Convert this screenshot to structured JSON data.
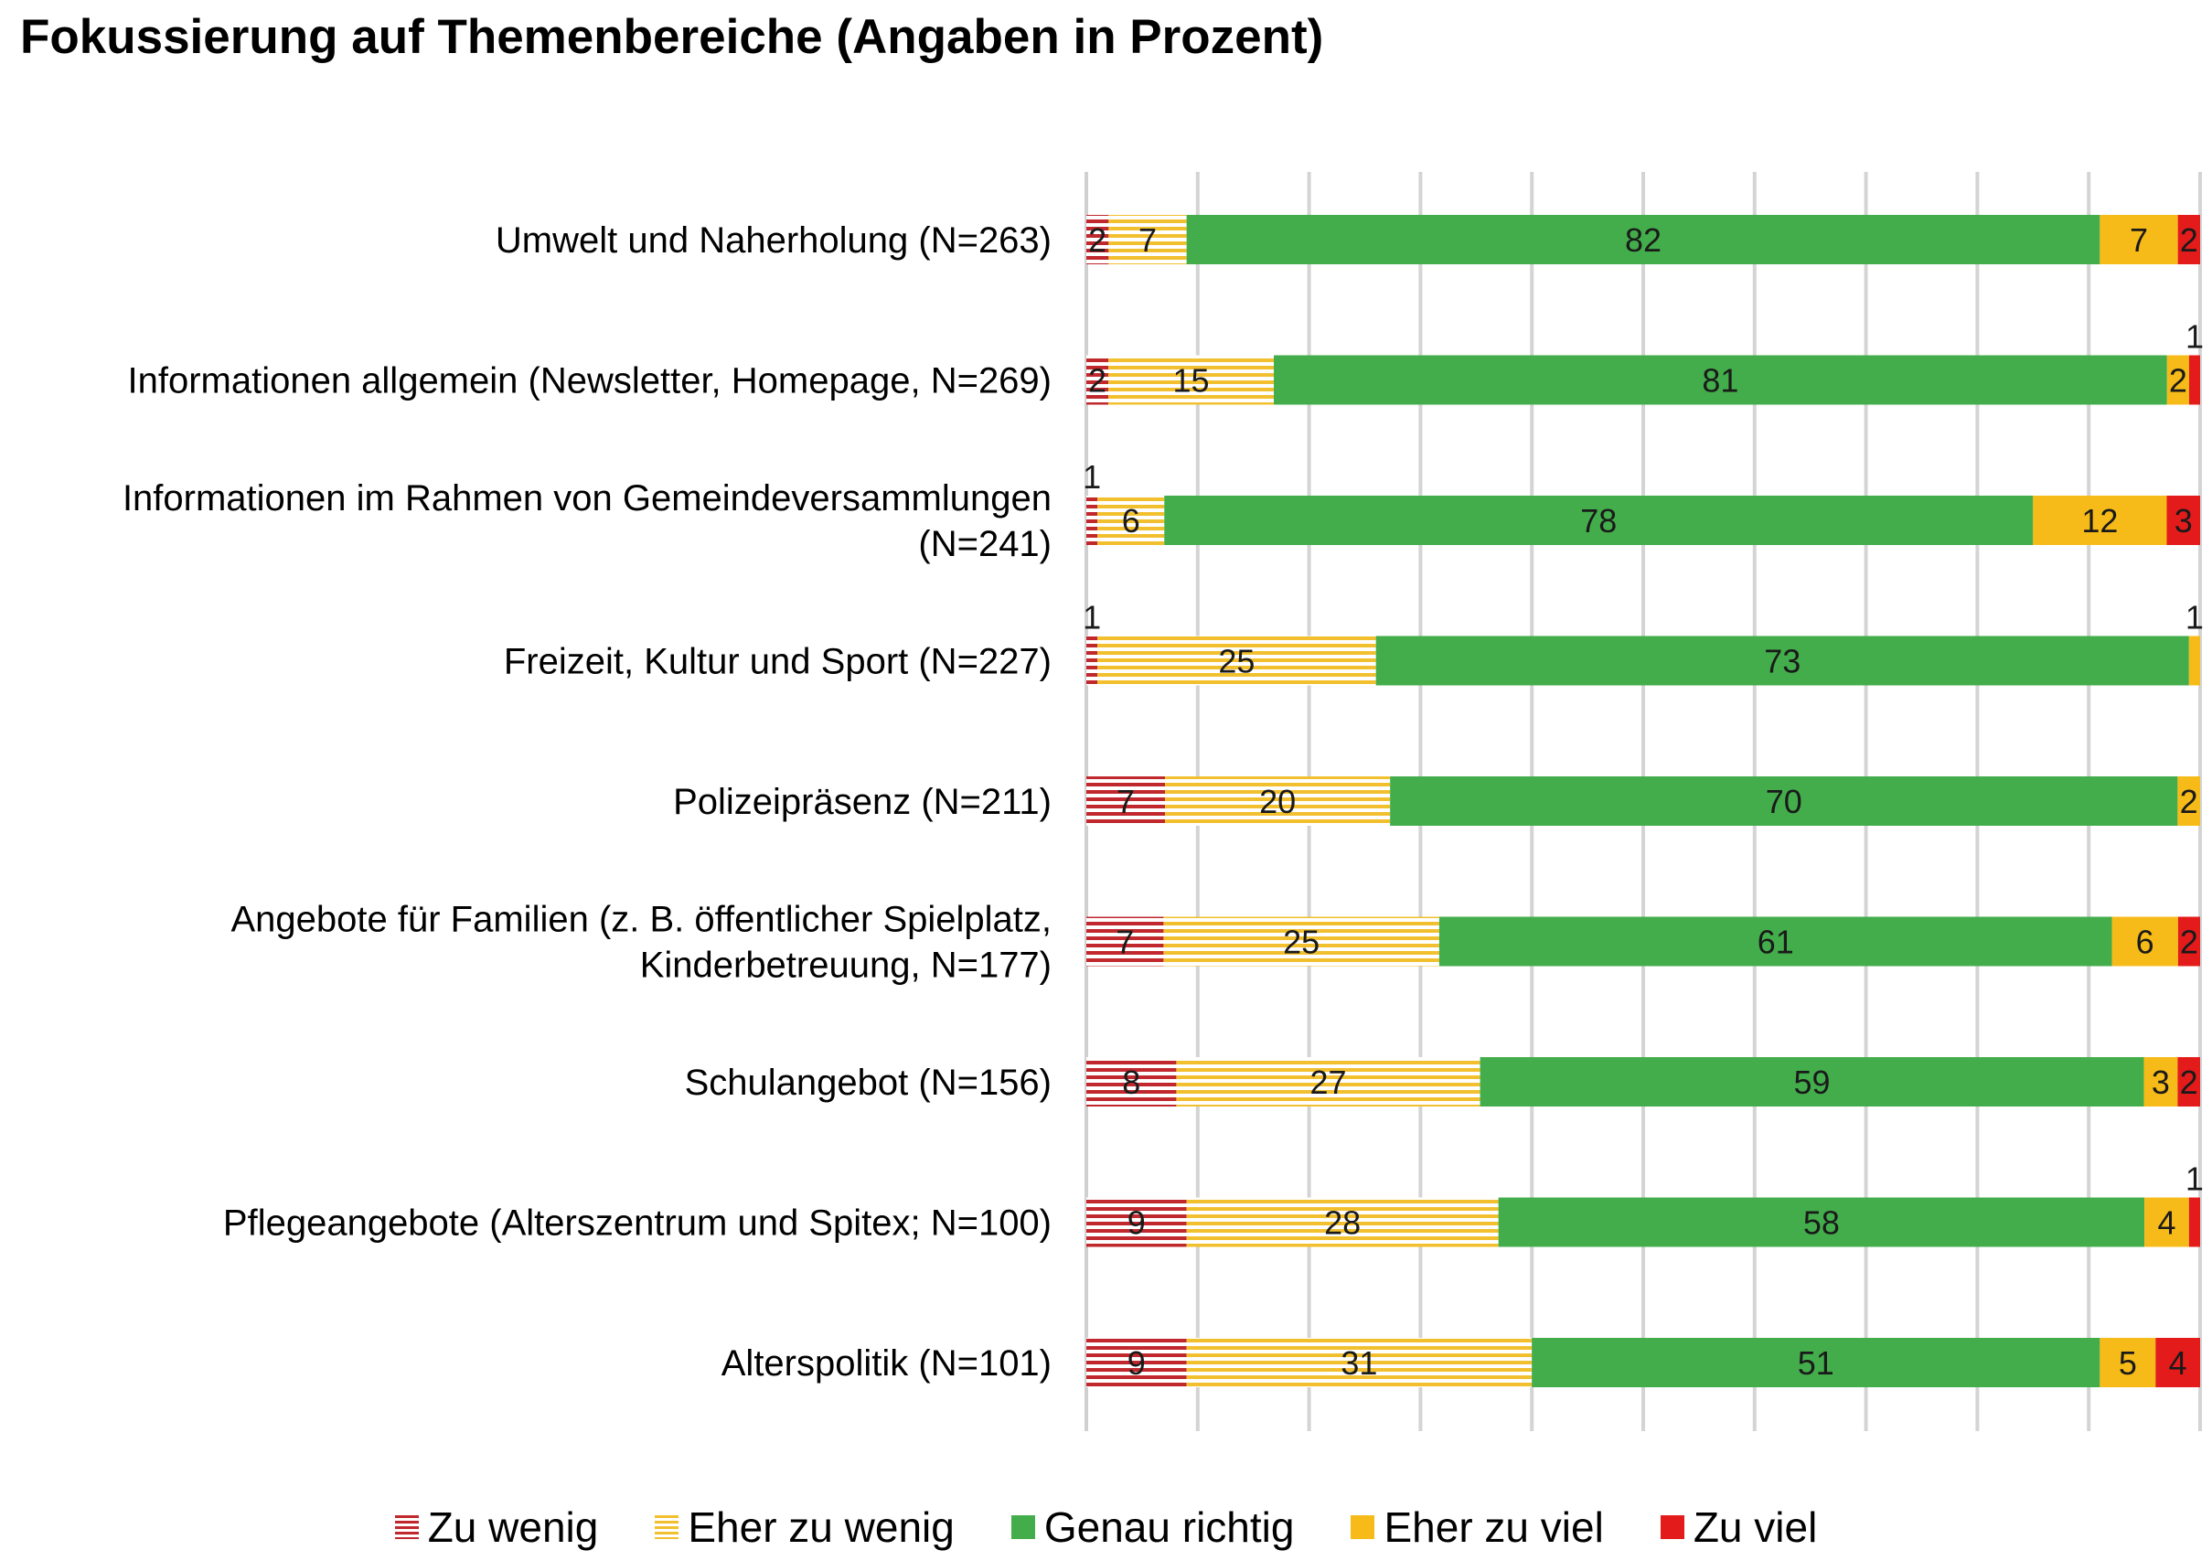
{
  "chart_data": {
    "type": "bar",
    "orientation": "horizontal",
    "stacked": true,
    "title": "Fokussierung auf Themenbereiche (Angaben in Prozent)",
    "xlim": [
      0,
      100
    ],
    "grid": true,
    "legend_position": "bottom",
    "categories": [
      [
        "Umwelt und Naherholung (N=263)"
      ],
      [
        "Informationen allgemein (Newsletter, Homepage, N=269)"
      ],
      [
        "Informationen im Rahmen von Gemeindeversammlungen",
        "(N=241)"
      ],
      [
        "Freizeit, Kultur und Sport (N=227)"
      ],
      [
        "Polizeipräsenz (N=211)"
      ],
      [
        "Angebote für Familien (z. B. öffentlicher Spielplatz,",
        "Kinderbetreuung, N=177)"
      ],
      [
        "Schulangebot (N=156)"
      ],
      [
        "Pflegeangebote (Alterszentrum und Spitex; N=100)"
      ],
      [
        "Alterspolitik (N=101)"
      ]
    ],
    "series": [
      {
        "name": "Zu wenig",
        "color": "#c0282d",
        "pattern": "stripes",
        "values": [
          2,
          2,
          1,
          1,
          7,
          7,
          8,
          9,
          9
        ]
      },
      {
        "name": "Eher zu wenig",
        "color": "#f2c02e",
        "pattern": "stripes",
        "values": [
          7,
          15,
          6,
          25,
          20,
          25,
          27,
          28,
          31
        ]
      },
      {
        "name": "Genau richtig",
        "color": "#43ad4b",
        "pattern": "solid",
        "values": [
          82,
          81,
          78,
          73,
          70,
          61,
          59,
          58,
          51
        ]
      },
      {
        "name": "Eher zu viel",
        "color": "#f7bb19",
        "pattern": "solid",
        "values": [
          7,
          2,
          12,
          1,
          2,
          6,
          3,
          4,
          5
        ]
      },
      {
        "name": "Zu viel",
        "color": "#e41b1b",
        "pattern": "solid",
        "values": [
          2,
          1,
          3,
          0,
          0,
          2,
          2,
          1,
          4
        ]
      }
    ]
  }
}
